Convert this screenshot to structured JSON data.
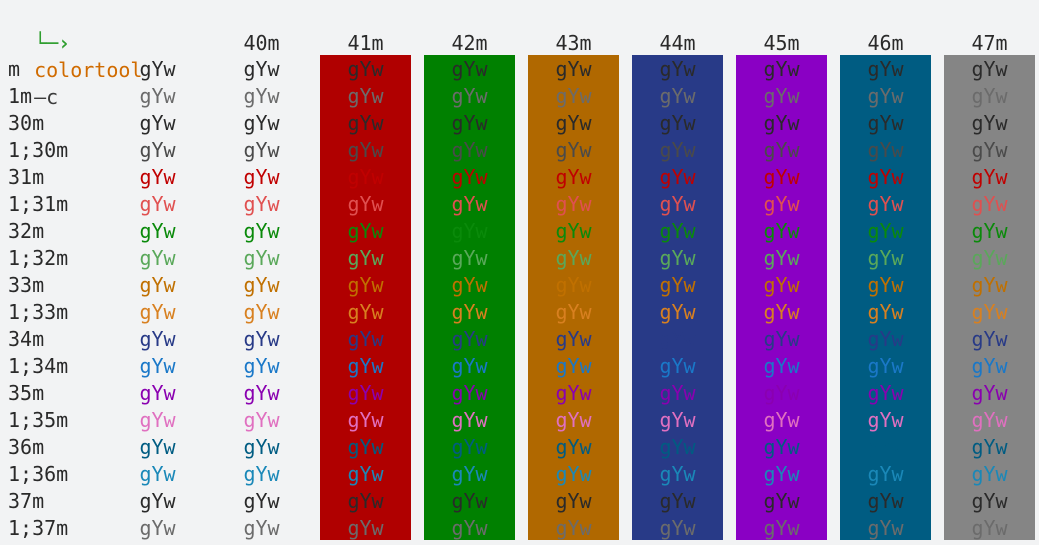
{
  "prompt": {
    "arrow": "└─›",
    "command": "colortool",
    "flag": "–c"
  },
  "columns": [
    {
      "label": "",
      "bg": null
    },
    {
      "label": "40m",
      "bg": null
    },
    {
      "label": "41m",
      "bg": "#b00000"
    },
    {
      "label": "42m",
      "bg": "#008000"
    },
    {
      "label": "43m",
      "bg": "#b06800"
    },
    {
      "label": "44m",
      "bg": "#283a87"
    },
    {
      "label": "45m",
      "bg": "#8a00c4"
    },
    {
      "label": "46m",
      "bg": "#005c82"
    },
    {
      "label": "47m",
      "bg": "#858585"
    }
  ],
  "sample_text": "gYw",
  "rows": [
    {
      "label": "m",
      "fg": "#2a2a2a"
    },
    {
      "label": "1m",
      "fg": "#6b6b6b"
    },
    {
      "label": "30m",
      "fg": "#2a2a2a"
    },
    {
      "label": "1;30m",
      "fg": "#4a4a4a"
    },
    {
      "label": "31m",
      "fg": "#c00000"
    },
    {
      "label": "1;31m",
      "fg": "#e05050"
    },
    {
      "label": "32m",
      "fg": "#0a8a0a"
    },
    {
      "label": "1;32m",
      "fg": "#5aa85a"
    },
    {
      "label": "33m",
      "fg": "#c07000"
    },
    {
      "label": "1;33m",
      "fg": "#d88020"
    },
    {
      "label": "34m",
      "fg": "#283a87"
    },
    {
      "label": "1;34m",
      "fg": "#1a78c8"
    },
    {
      "label": "35m",
      "fg": "#8a00b0"
    },
    {
      "label": "1;35m",
      "fg": "#e070c0"
    },
    {
      "label": "36m",
      "fg": "#005c82"
    },
    {
      "label": "1;36m",
      "fg": "#1a88b8"
    },
    {
      "label": "37m",
      "fg": "#2a2a2a"
    },
    {
      "label": "1;37m",
      "fg": "#6b6b6b"
    }
  ]
}
